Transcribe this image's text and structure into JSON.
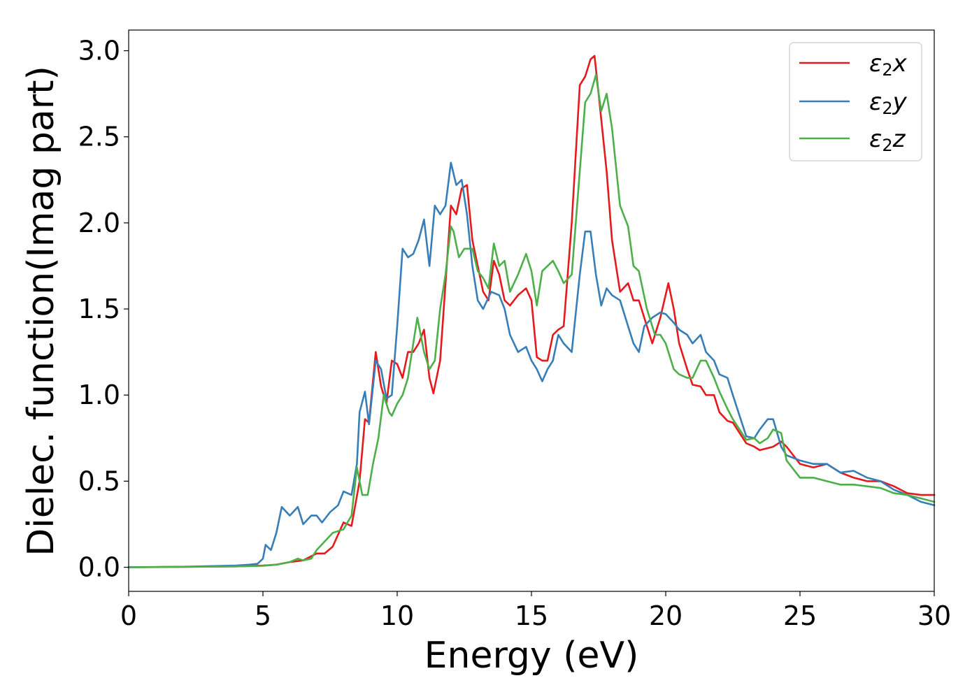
{
  "chart_data": {
    "type": "line",
    "title": "",
    "xlabel": "Energy (eV)",
    "ylabel": "Dielec. function(Imag part)",
    "xlim": [
      0,
      30
    ],
    "ylim": [
      -0.14,
      3.12
    ],
    "xticks": [
      0,
      5,
      10,
      15,
      20,
      25,
      30
    ],
    "yticks": [
      0.0,
      0.5,
      1.0,
      1.5,
      2.0,
      2.5,
      3.0
    ],
    "xtick_labels": [
      "0",
      "5",
      "10",
      "15",
      "20",
      "25",
      "30"
    ],
    "ytick_labels": [
      "0.0",
      "0.5",
      "1.0",
      "1.5",
      "2.0",
      "2.5",
      "3.0"
    ],
    "grid": false,
    "legend_position": "top-right",
    "series": [
      {
        "name": "ε2x",
        "legend_base": "ε",
        "legend_sub": "2",
        "legend_tail": "x",
        "color": "#e41a1c",
        "x": [
          0,
          2,
          4,
          5,
          5.5,
          6,
          6.5,
          7,
          7.3,
          7.6,
          8.0,
          8.3,
          8.6,
          8.8,
          8.95,
          9.2,
          9.4,
          9.6,
          9.8,
          10.0,
          10.2,
          10.4,
          10.6,
          10.8,
          11.0,
          11.2,
          11.35,
          11.6,
          12.0,
          12.2,
          12.4,
          12.6,
          12.8,
          13.0,
          13.2,
          13.4,
          13.6,
          13.8,
          14.0,
          14.2,
          14.5,
          14.8,
          15.0,
          15.2,
          15.4,
          15.6,
          15.8,
          16.0,
          16.2,
          16.5,
          16.8,
          17.0,
          17.2,
          17.35,
          17.5,
          17.8,
          18.0,
          18.3,
          18.6,
          18.8,
          19.0,
          19.2,
          19.5,
          19.8,
          20.1,
          20.3,
          20.5,
          20.8,
          21.0,
          21.3,
          21.5,
          21.8,
          22.0,
          22.3,
          22.5,
          23.0,
          23.3,
          23.5,
          24.0,
          24.3,
          24.5,
          25.0,
          25.5,
          26.0,
          26.5,
          27.0,
          27.5,
          28.0,
          28.5,
          29.0,
          29.5,
          30.0
        ],
        "y": [
          0,
          0.002,
          0.005,
          0.01,
          0.015,
          0.03,
          0.04,
          0.08,
          0.08,
          0.12,
          0.26,
          0.24,
          0.5,
          0.86,
          0.84,
          1.25,
          1.05,
          0.95,
          1.2,
          1.18,
          1.1,
          1.25,
          1.25,
          1.3,
          1.38,
          1.1,
          1.01,
          1.2,
          2.1,
          2.05,
          2.2,
          2.22,
          1.9,
          1.75,
          1.6,
          1.55,
          1.78,
          1.7,
          1.55,
          1.52,
          1.58,
          1.62,
          1.55,
          1.22,
          1.2,
          1.2,
          1.35,
          1.38,
          1.4,
          2.0,
          2.8,
          2.85,
          2.95,
          2.97,
          2.75,
          2.3,
          1.9,
          1.6,
          1.65,
          1.55,
          1.55,
          1.45,
          1.3,
          1.45,
          1.65,
          1.5,
          1.3,
          1.15,
          1.06,
          1.05,
          1.0,
          1.0,
          0.9,
          0.85,
          0.84,
          0.72,
          0.7,
          0.68,
          0.7,
          0.73,
          0.7,
          0.6,
          0.58,
          0.6,
          0.55,
          0.52,
          0.5,
          0.5,
          0.47,
          0.43,
          0.42,
          0.42
        ]
      },
      {
        "name": "ε2y",
        "legend_base": "ε",
        "legend_sub": "2",
        "legend_tail": "y",
        "color": "#377eb8",
        "x": [
          0,
          2,
          4,
          4.5,
          4.8,
          5.0,
          5.1,
          5.3,
          5.5,
          5.7,
          6.0,
          6.3,
          6.5,
          6.8,
          7.0,
          7.2,
          7.5,
          7.8,
          8.0,
          8.3,
          8.5,
          8.6,
          8.8,
          8.95,
          9.2,
          9.4,
          9.6,
          9.8,
          10.0,
          10.2,
          10.4,
          10.6,
          10.8,
          11.0,
          11.2,
          11.4,
          11.6,
          11.8,
          12.0,
          12.2,
          12.4,
          12.6,
          12.8,
          13.0,
          13.2,
          13.5,
          13.8,
          14.0,
          14.2,
          14.5,
          14.8,
          15.0,
          15.2,
          15.4,
          15.6,
          15.8,
          16.0,
          16.2,
          16.5,
          16.8,
          17.0,
          17.2,
          17.4,
          17.6,
          17.8,
          18.0,
          18.3,
          18.6,
          18.8,
          19.0,
          19.2,
          19.5,
          19.8,
          20.0,
          20.3,
          20.5,
          20.8,
          21.0,
          21.3,
          21.5,
          21.8,
          22.0,
          22.3,
          22.5,
          23.0,
          23.3,
          23.5,
          23.8,
          24.0,
          24.3,
          24.5,
          25.0,
          25.5,
          26.0,
          26.5,
          27.0,
          27.5,
          28.0,
          28.5,
          29.0,
          29.5,
          30.0
        ],
        "y": [
          0,
          0.003,
          0.01,
          0.015,
          0.02,
          0.05,
          0.13,
          0.1,
          0.2,
          0.35,
          0.3,
          0.35,
          0.25,
          0.3,
          0.3,
          0.26,
          0.32,
          0.36,
          0.44,
          0.42,
          0.6,
          0.9,
          1.02,
          0.83,
          1.2,
          1.15,
          0.98,
          1.0,
          1.4,
          1.85,
          1.8,
          1.82,
          1.9,
          2.02,
          1.75,
          2.1,
          2.05,
          2.1,
          2.35,
          2.22,
          2.25,
          2.05,
          1.75,
          1.55,
          1.5,
          1.6,
          1.58,
          1.5,
          1.35,
          1.25,
          1.28,
          1.2,
          1.15,
          1.08,
          1.15,
          1.2,
          1.35,
          1.3,
          1.25,
          1.7,
          1.95,
          1.95,
          1.7,
          1.52,
          1.62,
          1.58,
          1.55,
          1.4,
          1.3,
          1.25,
          1.4,
          1.45,
          1.48,
          1.47,
          1.42,
          1.38,
          1.35,
          1.3,
          1.35,
          1.25,
          1.2,
          1.12,
          1.1,
          1.0,
          0.76,
          0.75,
          0.8,
          0.86,
          0.86,
          0.7,
          0.65,
          0.62,
          0.6,
          0.6,
          0.55,
          0.56,
          0.52,
          0.5,
          0.45,
          0.42,
          0.38,
          0.36
        ]
      },
      {
        "name": "ε2z",
        "legend_base": "ε",
        "legend_sub": "2",
        "legend_tail": "z",
        "color": "#4daf4a",
        "x": [
          0,
          2,
          4,
          5,
          5.5,
          6,
          6.3,
          6.5,
          6.8,
          7.0,
          7.3,
          7.6,
          8.0,
          8.3,
          8.5,
          8.7,
          8.9,
          9.1,
          9.3,
          9.5,
          9.7,
          9.8,
          10.0,
          10.2,
          10.4,
          10.6,
          10.75,
          11.0,
          11.2,
          11.4,
          11.6,
          11.8,
          12.0,
          12.1,
          12.3,
          12.5,
          12.8,
          13.0,
          13.2,
          13.4,
          13.6,
          13.8,
          14.0,
          14.2,
          14.5,
          14.8,
          15.0,
          15.2,
          15.4,
          15.6,
          15.8,
          16.0,
          16.2,
          16.5,
          16.8,
          17.0,
          17.2,
          17.4,
          17.6,
          17.8,
          18.0,
          18.3,
          18.6,
          18.8,
          19.0,
          19.3,
          19.6,
          19.8,
          20.0,
          20.3,
          20.5,
          20.8,
          21.0,
          21.3,
          21.5,
          21.8,
          22.0,
          22.3,
          22.5,
          23.0,
          23.3,
          23.5,
          23.8,
          24.0,
          24.3,
          24.5,
          25.0,
          25.5,
          26.0,
          26.5,
          27.0,
          27.5,
          28.0,
          28.5,
          29.0,
          29.5,
          30.0
        ],
        "y": [
          0,
          0.002,
          0.005,
          0.008,
          0.015,
          0.03,
          0.05,
          0.04,
          0.05,
          0.1,
          0.15,
          0.2,
          0.22,
          0.3,
          0.58,
          0.42,
          0.42,
          0.6,
          0.75,
          1.0,
          0.9,
          0.88,
          0.95,
          1.0,
          1.1,
          1.3,
          1.45,
          1.25,
          1.15,
          1.2,
          1.5,
          1.7,
          1.98,
          1.95,
          1.8,
          1.85,
          1.85,
          1.72,
          1.68,
          1.62,
          1.88,
          1.75,
          1.78,
          1.6,
          1.7,
          1.82,
          1.72,
          1.52,
          1.72,
          1.75,
          1.78,
          1.72,
          1.65,
          1.7,
          2.3,
          2.7,
          2.75,
          2.86,
          2.65,
          2.75,
          2.55,
          2.1,
          1.98,
          1.75,
          1.72,
          1.5,
          1.35,
          1.35,
          1.3,
          1.15,
          1.12,
          1.1,
          1.1,
          1.2,
          1.2,
          1.1,
          1.02,
          0.92,
          0.86,
          0.74,
          0.75,
          0.72,
          0.75,
          0.8,
          0.78,
          0.62,
          0.52,
          0.52,
          0.5,
          0.48,
          0.48,
          0.47,
          0.46,
          0.43,
          0.42,
          0.4,
          0.38
        ]
      }
    ]
  }
}
